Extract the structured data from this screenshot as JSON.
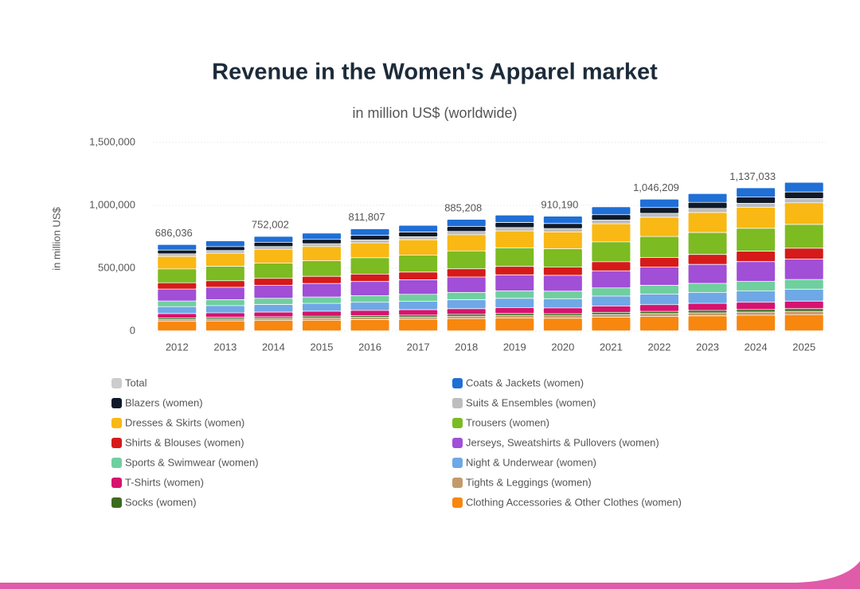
{
  "chart_data": {
    "type": "stacked_bar",
    "title": "Revenue in the Women's Apparel market",
    "subtitle": "in million US$ (worldwide)",
    "y_label": "in million US$",
    "categories": [
      "2012",
      "2013",
      "2014",
      "2015",
      "2016",
      "2017",
      "2018",
      "2019",
      "2020",
      "2021",
      "2022",
      "2023",
      "2024",
      "2025"
    ],
    "ylim": [
      0,
      1500000
    ],
    "yticks": [
      0,
      {
        "value": 500000,
        "label": "500,000"
      },
      {
        "value": 1000000,
        "label": "1,000,000"
      },
      {
        "value": 1500000,
        "label": "1,500,000"
      }
    ],
    "grid": true,
    "series": [
      {
        "name": "Total",
        "color": "#cccccc",
        "hidden": true,
        "values": [
          686036,
          null,
          752002,
          null,
          811807,
          null,
          885208,
          null,
          910190,
          null,
          1046209,
          null,
          1137033,
          null
        ],
        "value_labels": [
          "686,036",
          null,
          "752,002",
          null,
          "811,807",
          null,
          "885,208",
          null,
          "910,190",
          null,
          "1,046,209",
          null,
          "1,137,033",
          null
        ]
      },
      {
        "name": "Clothing Accessories & Other Clothes (women)",
        "color": "#f7870f",
        "values": [
          75000,
          78000,
          82000,
          85000,
          89000,
          92000,
          97000,
          101000,
          100000,
          108000,
          114000,
          119000,
          124000,
          129000
        ]
      },
      {
        "name": "Tights & Leggings (women)",
        "color": "#c49a6c",
        "values": [
          15000,
          16000,
          16000,
          17000,
          18000,
          18000,
          19000,
          20000,
          20000,
          22000,
          23000,
          24000,
          25000,
          26000
        ]
      },
      {
        "name": "Socks (women)",
        "color": "#3b6b1f",
        "values": [
          12000,
          13000,
          13000,
          14000,
          14000,
          15000,
          15000,
          16000,
          16000,
          17000,
          18000,
          19000,
          20000,
          21000
        ]
      },
      {
        "name": "T-Shirts (women)",
        "color": "#d6136e",
        "values": [
          35000,
          36000,
          38000,
          40000,
          41000,
          43000,
          45000,
          47000,
          46000,
          50000,
          53000,
          56000,
          58000,
          60000
        ]
      },
      {
        "name": "Night & Underwear (women)",
        "color": "#6fa8e6",
        "values": [
          55000,
          57000,
          60000,
          62000,
          65000,
          67000,
          71000,
          74000,
          73000,
          79000,
          84000,
          87000,
          91000,
          95000
        ]
      },
      {
        "name": "Sports & Swimwear (women)",
        "color": "#6fcf9f",
        "values": [
          45000,
          47000,
          49000,
          51000,
          53000,
          55000,
          58000,
          60000,
          60000,
          65000,
          69000,
          72000,
          75000,
          77000
        ]
      },
      {
        "name": "Jerseys, Sweatshirts & Pullovers (women)",
        "color": "#a04fd6",
        "values": [
          95000,
          99000,
          104000,
          107000,
          112000,
          116000,
          123000,
          127000,
          126000,
          136000,
          145000,
          151000,
          157000,
          163000
        ]
      },
      {
        "name": "Shirts & Blouses (women)",
        "color": "#d61a1a",
        "values": [
          50000,
          52000,
          55000,
          57000,
          59000,
          61000,
          65000,
          67000,
          66000,
          72000,
          76000,
          79000,
          83000,
          86000
        ]
      },
      {
        "name": "Trousers (women)",
        "color": "#7cbb22",
        "values": [
          110000,
          115000,
          121000,
          124000,
          130000,
          135000,
          142000,
          148000,
          146000,
          158000,
          168000,
          175000,
          182000,
          189000
        ]
      },
      {
        "name": "Dresses & Skirts (women)",
        "color": "#f9b814",
        "values": [
          100000,
          104000,
          110000,
          113000,
          118000,
          122000,
          129000,
          134000,
          133000,
          144000,
          153000,
          159000,
          166000,
          172000
        ]
      },
      {
        "name": "Suits & Ensembles (women)",
        "color": "#bdbdbd",
        "values": [
          20000,
          21000,
          22000,
          23000,
          24000,
          24000,
          26000,
          27000,
          27000,
          29000,
          31000,
          32000,
          33000,
          34000
        ]
      },
      {
        "name": "Blazers (women)",
        "color": "#0e1a2b",
        "values": [
          30000,
          31000,
          33000,
          34000,
          36000,
          37000,
          39000,
          40000,
          40000,
          43000,
          46000,
          48000,
          50000,
          52000
        ]
      },
      {
        "name": "Coats & Jackets (women)",
        "color": "#1f6fd6",
        "values": [
          44000,
          46000,
          48000,
          50000,
          52000,
          54000,
          57000,
          59000,
          58000,
          63000,
          67000,
          70000,
          73000,
          76000
        ]
      }
    ]
  }
}
